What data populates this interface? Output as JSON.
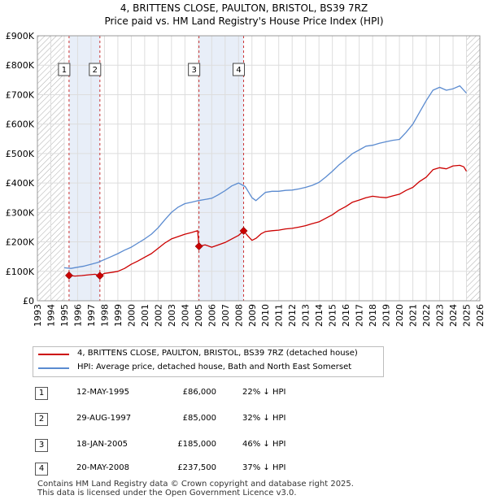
{
  "title_line1": "4, BRITTENS CLOSE, PAULTON, BRISTOL, BS39 7RZ",
  "title_line2": "Price paid vs. HM Land Registry's House Price Index (HPI)",
  "colors": {
    "property": "#cc0000",
    "hpi": "#5b8bd0",
    "shade": "#e8eef8",
    "hatch": "#aaaaaa",
    "grid": "#dddddd",
    "marker_vline": "#cc3333"
  },
  "chart_data": {
    "type": "line",
    "title": "Price paid vs. HM Land Registry's House Price Index (HPI)",
    "xlabel": "",
    "ylabel": "",
    "xlim": [
      1993,
      2026
    ],
    "ylim": [
      0,
      900000
    ],
    "xticks": [
      "1993",
      "1994",
      "1995",
      "1996",
      "1997",
      "1998",
      "1999",
      "2000",
      "2001",
      "2002",
      "2003",
      "2004",
      "2005",
      "2006",
      "2007",
      "2008",
      "2009",
      "2010",
      "2011",
      "2012",
      "2013",
      "2014",
      "2015",
      "2016",
      "2017",
      "2018",
      "2019",
      "2020",
      "2021",
      "2022",
      "2023",
      "2024",
      "2025",
      "2026"
    ],
    "yticks": [
      {
        "value": 0,
        "label": "£0"
      },
      {
        "value": 100000,
        "label": "£100K"
      },
      {
        "value": 200000,
        "label": "£200K"
      },
      {
        "value": 300000,
        "label": "£300K"
      },
      {
        "value": 400000,
        "label": "£400K"
      },
      {
        "value": 500000,
        "label": "£500K"
      },
      {
        "value": 600000,
        "label": "£600K"
      },
      {
        "value": 700000,
        "label": "£700K"
      },
      {
        "value": 800000,
        "label": "£800K"
      },
      {
        "value": 900000,
        "label": "£900K"
      }
    ],
    "grid": true,
    "hatched_ranges": [
      [
        1993,
        1995.0
      ],
      [
        2025.0,
        2026
      ]
    ],
    "shaded_ranges": [
      [
        1995.36,
        1997.66
      ],
      [
        2005.05,
        2008.38
      ]
    ],
    "series": [
      {
        "name": "4, BRITTENS CLOSE, PAULTON, BRISTOL, BS39 7RZ (detached house)",
        "x": [
          1995.36,
          1995.8,
          1996.3,
          1996.8,
          1997.3,
          1997.66,
          1998.0,
          1998.5,
          1999.0,
          1999.5,
          2000.0,
          2000.5,
          2001.0,
          2001.5,
          2002.0,
          2002.5,
          2003.0,
          2003.5,
          2004.0,
          2004.5,
          2004.95,
          2005.05,
          2005.5,
          2006.0,
          2006.5,
          2007.0,
          2007.5,
          2008.0,
          2008.38,
          2008.7,
          2009.0,
          2009.3,
          2009.7,
          2010.0,
          2010.5,
          2011.0,
          2011.5,
          2012.0,
          2012.5,
          2013.0,
          2013.5,
          2014.0,
          2014.5,
          2015.0,
          2015.5,
          2016.0,
          2016.5,
          2017.0,
          2017.5,
          2018.0,
          2018.5,
          2019.0,
          2019.5,
          2020.0,
          2020.5,
          2021.0,
          2021.5,
          2022.0,
          2022.5,
          2023.0,
          2023.5,
          2024.0,
          2024.5,
          2024.8,
          2025.0
        ],
        "values": [
          86000,
          84000,
          85500,
          88000,
          90000,
          85000,
          93000,
          96000,
          100000,
          110000,
          124000,
          135000,
          148000,
          160000,
          178000,
          196000,
          210000,
          218000,
          226000,
          232000,
          238000,
          185000,
          190000,
          182000,
          190000,
          198000,
          210000,
          222000,
          237500,
          220000,
          205000,
          212000,
          228000,
          235000,
          238000,
          240000,
          244000,
          246000,
          250000,
          255000,
          262000,
          268000,
          280000,
          292000,
          308000,
          320000,
          335000,
          342000,
          350000,
          355000,
          352000,
          350000,
          356000,
          362000,
          375000,
          385000,
          405000,
          420000,
          445000,
          452000,
          448000,
          458000,
          460000,
          455000,
          440000
        ]
      },
      {
        "name": "HPI: Average price, detached house, Bath and North East Somerset",
        "x": [
          1995.0,
          1995.5,
          1996.0,
          1996.5,
          1997.0,
          1997.5,
          1998.0,
          1998.5,
          1999.0,
          1999.5,
          2000.0,
          2000.5,
          2001.0,
          2001.5,
          2002.0,
          2002.5,
          2003.0,
          2003.5,
          2004.0,
          2004.5,
          2005.0,
          2005.5,
          2006.0,
          2006.5,
          2007.0,
          2007.5,
          2008.0,
          2008.5,
          2009.0,
          2009.3,
          2009.7,
          2010.0,
          2010.5,
          2011.0,
          2011.5,
          2012.0,
          2012.5,
          2013.0,
          2013.5,
          2014.0,
          2014.5,
          2015.0,
          2015.5,
          2016.0,
          2016.5,
          2017.0,
          2017.5,
          2018.0,
          2018.5,
          2019.0,
          2019.5,
          2020.0,
          2020.5,
          2021.0,
          2021.5,
          2022.0,
          2022.5,
          2023.0,
          2023.5,
          2024.0,
          2024.5,
          2024.8,
          2025.0
        ],
        "values": [
          112000,
          110000,
          114000,
          118000,
          124000,
          130000,
          140000,
          150000,
          160000,
          172000,
          182000,
          196000,
          210000,
          226000,
          248000,
          275000,
          300000,
          318000,
          330000,
          335000,
          340000,
          344000,
          348000,
          360000,
          374000,
          390000,
          400000,
          388000,
          350000,
          340000,
          356000,
          368000,
          372000,
          372000,
          375000,
          376000,
          380000,
          385000,
          392000,
          402000,
          420000,
          440000,
          462000,
          480000,
          500000,
          512000,
          525000,
          528000,
          535000,
          540000,
          545000,
          548000,
          572000,
          600000,
          640000,
          680000,
          715000,
          725000,
          715000,
          720000,
          730000,
          715000,
          705000
        ]
      }
    ],
    "sale_markers": [
      {
        "label": "1",
        "x": 1995.36,
        "value": 86000
      },
      {
        "label": "2",
        "x": 1997.66,
        "value": 85000
      },
      {
        "label": "3",
        "x": 2005.05,
        "value": 185000
      },
      {
        "label": "4",
        "x": 2008.38,
        "value": 237500
      }
    ]
  },
  "legend": [
    {
      "label": "4, BRITTENS CLOSE, PAULTON, BRISTOL, BS39 7RZ (detached house)"
    },
    {
      "label": "HPI: Average price, detached house, Bath and North East Somerset"
    }
  ],
  "sales": [
    {
      "num": "1",
      "date": "12-MAY-1995",
      "price": "£86,000",
      "hpi": "22% ↓ HPI"
    },
    {
      "num": "2",
      "date": "29-AUG-1997",
      "price": "£85,000",
      "hpi": "32% ↓ HPI"
    },
    {
      "num": "3",
      "date": "18-JAN-2005",
      "price": "£185,000",
      "hpi": "46% ↓ HPI"
    },
    {
      "num": "4",
      "date": "20-MAY-2008",
      "price": "£237,500",
      "hpi": "37% ↓ HPI"
    }
  ],
  "footer_line1": "Contains HM Land Registry data © Crown copyright and database right 2025.",
  "footer_line2": "This data is licensed under the Open Government Licence v3.0."
}
